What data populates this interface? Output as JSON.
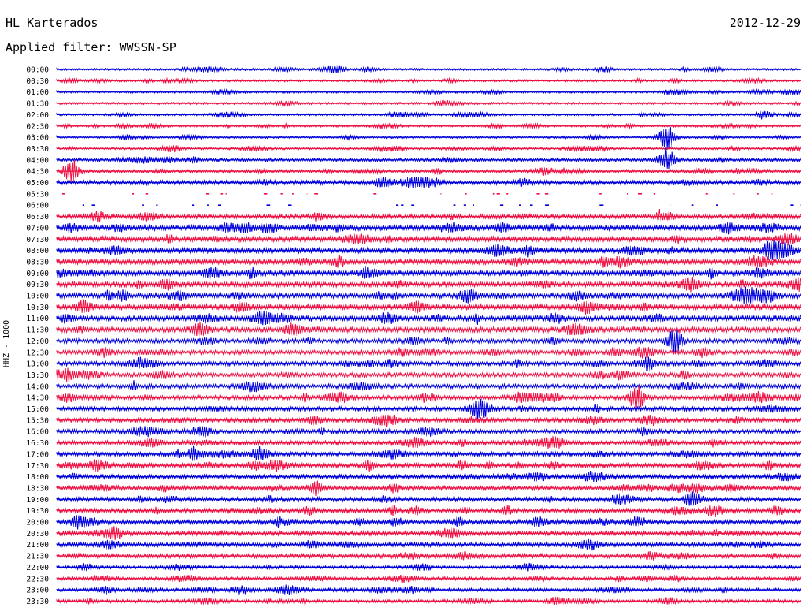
{
  "header": {
    "station": "HL Karterados",
    "date": "2012-12-29",
    "filter": "Applied filter: WWSSN-SP"
  },
  "colors": {
    "trace_a": "#0000dd",
    "trace_b": "#ee1144",
    "background": "#ffffff"
  },
  "chart_data": {
    "type": "line",
    "title": "HL Karterados",
    "subtitle": "Applied filter: WWSSN-SP",
    "ylabel": "HHZ - 1000",
    "xlabel": "",
    "rows": [
      "00:00",
      "00:30",
      "01:00",
      "01:30",
      "02:00",
      "02:30",
      "03:00",
      "03:30",
      "04:00",
      "04:30",
      "05:00",
      "05:30",
      "06:00",
      "06:30",
      "07:00",
      "07:30",
      "08:00",
      "08:30",
      "09:00",
      "09:30",
      "10:00",
      "10:30",
      "11:00",
      "11:30",
      "12:00",
      "12:30",
      "13:00",
      "13:30",
      "14:00",
      "14:30",
      "15:00",
      "15:30",
      "16:00",
      "16:30",
      "17:00",
      "17:30",
      "18:00",
      "18:30",
      "19:00",
      "19:30",
      "20:00",
      "20:30",
      "21:00",
      "21:30",
      "22:00",
      "22:30",
      "23:00",
      "23:30"
    ],
    "row_colors": [
      "blue",
      "red"
    ],
    "activity_levels": [
      1,
      1,
      1,
      1,
      1,
      1,
      1,
      1,
      2,
      2,
      3,
      2,
      1,
      3,
      4,
      4,
      4,
      4,
      4,
      4,
      4,
      4,
      4,
      4,
      3,
      3,
      3,
      3,
      3,
      3,
      3,
      3,
      3,
      3,
      3,
      3,
      3,
      3,
      3,
      3,
      3,
      3,
      3,
      3,
      2,
      2,
      2,
      2
    ],
    "notable_events": [
      {
        "row": "03:00",
        "x_fraction": 0.82,
        "amplitude": "large"
      },
      {
        "row": "04:00",
        "x_fraction": 0.82,
        "amplitude": "large"
      },
      {
        "row": "04:30",
        "x_fraction": 0.02,
        "amplitude": "large"
      },
      {
        "row": "12:00",
        "x_fraction": 0.83,
        "amplitude": "large"
      },
      {
        "row": "14:30",
        "x_fraction": 0.78,
        "amplitude": "large"
      }
    ],
    "gaps": [
      {
        "row": "05:30",
        "style": "dashed"
      },
      {
        "row": "06:00",
        "style": "dashed"
      }
    ],
    "grid": false
  }
}
